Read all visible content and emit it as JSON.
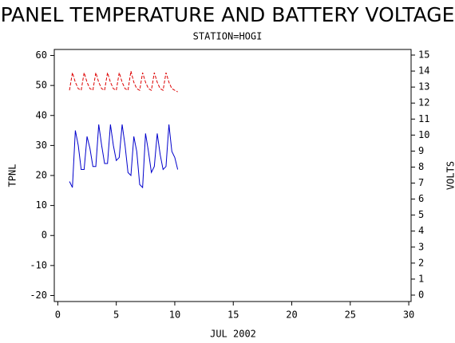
{
  "chart_data": {
    "type": "line",
    "title": "PANEL TEMPERATURE AND BATTERY VOLTAGE",
    "subtitle": "STATION=HOGI",
    "xlabel": "JUL 2002",
    "ylabel": "TPNL",
    "y2label": "VOLTS",
    "x": [
      1.0,
      1.25,
      1.5,
      1.75,
      2.0,
      2.25,
      2.5,
      2.75,
      3.0,
      3.25,
      3.5,
      3.75,
      4.0,
      4.25,
      4.5,
      4.75,
      5.0,
      5.25,
      5.5,
      5.75,
      6.0,
      6.25,
      6.5,
      6.75,
      7.0,
      7.25,
      7.5,
      7.75,
      8.0,
      8.25,
      8.5,
      8.75,
      9.0,
      9.25,
      9.5,
      9.75,
      10.0,
      10.25
    ],
    "series": [
      {
        "name": "TPNL",
        "color": "#0000cc",
        "axis": "y",
        "values": [
          18,
          16,
          35,
          30,
          22,
          22,
          33,
          29,
          23,
          23,
          37,
          30,
          24,
          24,
          37,
          30,
          25,
          26,
          37,
          30,
          21,
          20,
          33,
          28,
          17,
          16,
          34,
          28,
          21,
          23,
          34,
          27,
          22,
          23,
          37,
          28,
          26,
          22
        ]
      },
      {
        "name": "VOLTS",
        "color": "#dd0000",
        "axis": "y2",
        "values": [
          12.8,
          13.9,
          13.3,
          12.9,
          12.8,
          13.9,
          13.3,
          12.9,
          12.8,
          13.9,
          13.3,
          12.9,
          12.8,
          13.9,
          13.3,
          12.9,
          12.8,
          13.9,
          13.3,
          12.9,
          12.8,
          14.0,
          13.3,
          12.9,
          12.8,
          13.9,
          13.3,
          12.9,
          12.8,
          13.9,
          13.3,
          12.9,
          12.8,
          13.9,
          13.3,
          12.9,
          12.8,
          12.7
        ]
      }
    ],
    "xlim": [
      -0.3,
      30.2
    ],
    "xticks": [
      0,
      5,
      10,
      15,
      20,
      25,
      30
    ],
    "ylim": [
      -22,
      62
    ],
    "yticks": [
      -20,
      -10,
      0,
      10,
      20,
      30,
      40,
      50,
      60
    ],
    "y2lim": [
      -0.4,
      15.35
    ],
    "y2ticks": [
      0,
      1,
      2,
      3,
      4,
      5,
      6,
      7,
      8,
      9,
      10,
      11,
      12,
      13,
      14,
      15
    ]
  }
}
